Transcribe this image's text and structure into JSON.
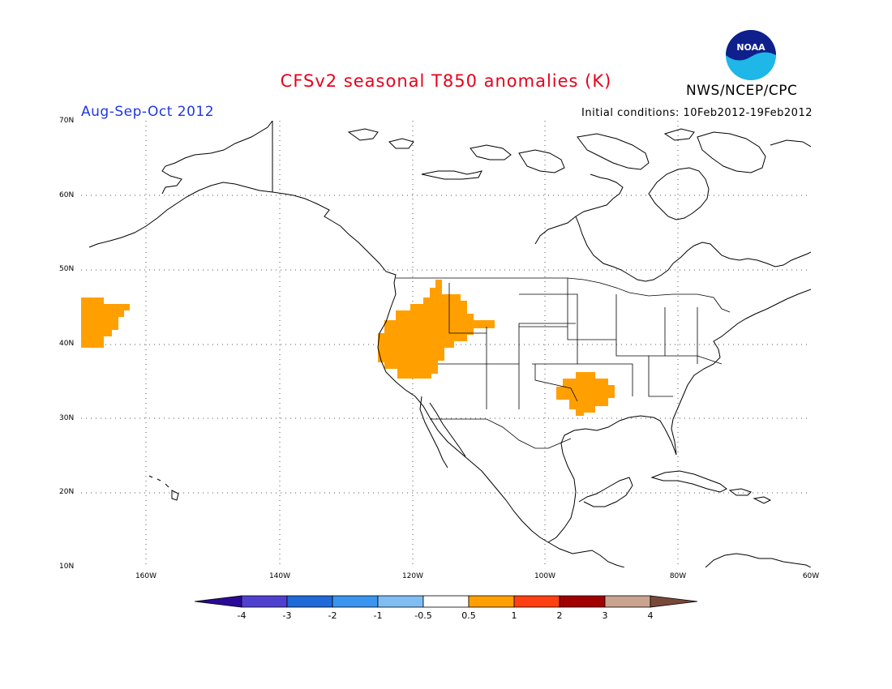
{
  "title": "CFSv2 seasonal T850 anomalies (K)",
  "agency": "NWS/NCEP/CPC",
  "logo_text": "NOAA",
  "season": "Aug-Sep-Oct 2012",
  "initial_conditions": "Initial conditions: 10Feb2012-19Feb2012",
  "colors": {
    "title": "#e8001c",
    "season": "#1f38e0",
    "anomaly_fill": "#ffa000",
    "grid": "#555555"
  },
  "axes": {
    "lat_labels": [
      "70N",
      "60N",
      "50N",
      "40N",
      "30N",
      "20N",
      "10N"
    ],
    "lon_labels": [
      "160W",
      "140W",
      "120W",
      "100W",
      "80W",
      "60W"
    ]
  },
  "colorbar": {
    "labels": [
      "-4",
      "-3",
      "-2",
      "-1",
      "-0.5",
      "0.5",
      "1",
      "2",
      "3",
      "4"
    ],
    "colors": [
      "#2a0a9a",
      "#5040d0",
      "#1f6ad8",
      "#3a95f0",
      "#7fbdf3",
      "#ffffff",
      "#ffa000",
      "#ff4012",
      "#a10000",
      "#c8a490",
      "#7a4838"
    ]
  },
  "anomaly_regions": [
    "north-pacific-west-edge",
    "western-us-great-basin",
    "south-central-us"
  ]
}
